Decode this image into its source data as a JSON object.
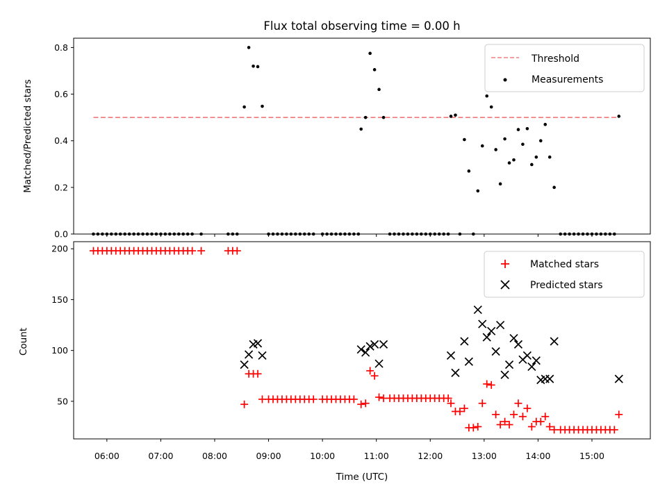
{
  "chart_data": [
    {
      "type": "scatter",
      "title": "Flux total observing time = 0.00 h",
      "xlabel": "",
      "ylabel": "Matched/Predicted stars",
      "xlim": [
        "05:23",
        "16:05"
      ],
      "ylim": [
        0,
        0.84
      ],
      "yticks": [
        "0.0",
        "0.2",
        "0.4",
        "0.6",
        "0.8"
      ],
      "legend_position": "top-right",
      "threshold": {
        "name": "Threshold",
        "value": 0.5,
        "x_range": [
          "05:45",
          "15:30"
        ],
        "color": "#f08080"
      },
      "series": [
        {
          "name": "Measurements",
          "color": "#000000",
          "points": [
            [
              "05:45",
              0
            ],
            [
              "05:50",
              0
            ],
            [
              "05:55",
              0
            ],
            [
              "06:00",
              0
            ],
            [
              "06:05",
              0
            ],
            [
              "06:10",
              0
            ],
            [
              "06:15",
              0
            ],
            [
              "06:20",
              0
            ],
            [
              "06:25",
              0
            ],
            [
              "06:30",
              0
            ],
            [
              "06:35",
              0
            ],
            [
              "06:40",
              0
            ],
            [
              "06:45",
              0
            ],
            [
              "06:50",
              0
            ],
            [
              "06:55",
              0
            ],
            [
              "07:00",
              0
            ],
            [
              "07:05",
              0
            ],
            [
              "07:10",
              0
            ],
            [
              "07:15",
              0
            ],
            [
              "07:20",
              0
            ],
            [
              "07:25",
              0
            ],
            [
              "07:30",
              0
            ],
            [
              "07:35",
              0
            ],
            [
              "07:45",
              0
            ],
            [
              "08:15",
              0
            ],
            [
              "08:20",
              0
            ],
            [
              "08:25",
              0
            ],
            [
              "08:33",
              0.545
            ],
            [
              "08:38",
              0.8
            ],
            [
              "08:43",
              0.72
            ],
            [
              "08:48",
              0.718
            ],
            [
              "08:53",
              0.548
            ],
            [
              "09:00",
              0
            ],
            [
              "09:05",
              0
            ],
            [
              "09:10",
              0
            ],
            [
              "09:15",
              0
            ],
            [
              "09:20",
              0
            ],
            [
              "09:25",
              0
            ],
            [
              "09:30",
              0
            ],
            [
              "09:35",
              0
            ],
            [
              "09:40",
              0
            ],
            [
              "09:45",
              0
            ],
            [
              "09:50",
              0
            ],
            [
              "10:00",
              0
            ],
            [
              "10:05",
              0
            ],
            [
              "10:10",
              0
            ],
            [
              "10:15",
              0
            ],
            [
              "10:20",
              0
            ],
            [
              "10:25",
              0
            ],
            [
              "10:30",
              0
            ],
            [
              "10:35",
              0
            ],
            [
              "10:40",
              0
            ],
            [
              "10:43",
              0.45
            ],
            [
              "10:48",
              0.5
            ],
            [
              "10:53",
              0.775
            ],
            [
              "10:58",
              0.705
            ],
            [
              "11:03",
              0.62
            ],
            [
              "11:08",
              0.5
            ],
            [
              "11:15",
              0
            ],
            [
              "11:20",
              0
            ],
            [
              "11:25",
              0
            ],
            [
              "11:30",
              0
            ],
            [
              "11:35",
              0
            ],
            [
              "11:40",
              0
            ],
            [
              "11:45",
              0
            ],
            [
              "11:50",
              0
            ],
            [
              "11:55",
              0
            ],
            [
              "12:00",
              0
            ],
            [
              "12:05",
              0
            ],
            [
              "12:10",
              0
            ],
            [
              "12:15",
              0
            ],
            [
              "12:20",
              0
            ],
            [
              "12:23",
              0.505
            ],
            [
              "12:28",
              0.51
            ],
            [
              "12:33",
              0
            ],
            [
              "12:38",
              0.405
            ],
            [
              "12:43",
              0.27
            ],
            [
              "12:48",
              0
            ],
            [
              "12:53",
              0.185
            ],
            [
              "12:58",
              0.378
            ],
            [
              "13:03",
              0.592
            ],
            [
              "13:08",
              0.545
            ],
            [
              "13:13",
              0.362
            ],
            [
              "13:18",
              0.215
            ],
            [
              "13:23",
              0.408
            ],
            [
              "13:28",
              0.305
            ],
            [
              "13:33",
              0.318
            ],
            [
              "13:38",
              0.448
            ],
            [
              "13:43",
              0.385
            ],
            [
              "13:48",
              0.452
            ],
            [
              "13:53",
              0.298
            ],
            [
              "13:58",
              0.33
            ],
            [
              "14:03",
              0.4
            ],
            [
              "14:08",
              0.47
            ],
            [
              "14:13",
              0.33
            ],
            [
              "14:18",
              0.2
            ],
            [
              "14:25",
              0
            ],
            [
              "14:30",
              0
            ],
            [
              "14:35",
              0
            ],
            [
              "14:40",
              0
            ],
            [
              "14:45",
              0
            ],
            [
              "14:50",
              0
            ],
            [
              "14:55",
              0
            ],
            [
              "15:00",
              0
            ],
            [
              "15:05",
              0
            ],
            [
              "15:10",
              0
            ],
            [
              "15:15",
              0
            ],
            [
              "15:20",
              0
            ],
            [
              "15:25",
              0
            ],
            [
              "15:30",
              0.505
            ]
          ]
        }
      ]
    },
    {
      "type": "scatter",
      "title": "",
      "xlabel": "Time (UTC)",
      "ylabel": "Count",
      "xlim": [
        "05:23",
        "16:05"
      ],
      "ylim": [
        13,
        207
      ],
      "yticks": [
        "50",
        "100",
        "150",
        "200"
      ],
      "xticks": [
        "06:00",
        "07:00",
        "08:00",
        "09:00",
        "10:00",
        "11:00",
        "12:00",
        "13:00",
        "14:00",
        "15:00"
      ],
      "legend_position": "top-right",
      "series": [
        {
          "name": "Matched stars",
          "color": "#ff0000",
          "marker": "plus",
          "points": [
            [
              "05:45",
              198
            ],
            [
              "05:50",
              198
            ],
            [
              "05:55",
              198
            ],
            [
              "06:00",
              198
            ],
            [
              "06:05",
              198
            ],
            [
              "06:10",
              198
            ],
            [
              "06:15",
              198
            ],
            [
              "06:20",
              198
            ],
            [
              "06:25",
              198
            ],
            [
              "06:30",
              198
            ],
            [
              "06:35",
              198
            ],
            [
              "06:40",
              198
            ],
            [
              "06:45",
              198
            ],
            [
              "06:50",
              198
            ],
            [
              "06:55",
              198
            ],
            [
              "07:00",
              198
            ],
            [
              "07:05",
              198
            ],
            [
              "07:10",
              198
            ],
            [
              "07:15",
              198
            ],
            [
              "07:20",
              198
            ],
            [
              "07:25",
              198
            ],
            [
              "07:30",
              198
            ],
            [
              "07:35",
              198
            ],
            [
              "07:45",
              198
            ],
            [
              "08:15",
              198
            ],
            [
              "08:20",
              198
            ],
            [
              "08:25",
              198
            ],
            [
              "08:33",
              47
            ],
            [
              "08:38",
              77
            ],
            [
              "08:43",
              77
            ],
            [
              "08:48",
              77
            ],
            [
              "08:53",
              52
            ],
            [
              "09:00",
              52
            ],
            [
              "09:05",
              52
            ],
            [
              "09:10",
              52
            ],
            [
              "09:15",
              52
            ],
            [
              "09:20",
              52
            ],
            [
              "09:25",
              52
            ],
            [
              "09:30",
              52
            ],
            [
              "09:35",
              52
            ],
            [
              "09:40",
              52
            ],
            [
              "09:45",
              52
            ],
            [
              "09:50",
              52
            ],
            [
              "10:00",
              52
            ],
            [
              "10:05",
              52
            ],
            [
              "10:10",
              52
            ],
            [
              "10:15",
              52
            ],
            [
              "10:20",
              52
            ],
            [
              "10:25",
              52
            ],
            [
              "10:30",
              52
            ],
            [
              "10:35",
              52
            ],
            [
              "10:43",
              47
            ],
            [
              "10:48",
              48
            ],
            [
              "10:53",
              80
            ],
            [
              "10:58",
              75
            ],
            [
              "11:03",
              54
            ],
            [
              "11:08",
              53
            ],
            [
              "11:15",
              53
            ],
            [
              "11:20",
              53
            ],
            [
              "11:25",
              53
            ],
            [
              "11:30",
              53
            ],
            [
              "11:35",
              53
            ],
            [
              "11:40",
              53
            ],
            [
              "11:45",
              53
            ],
            [
              "11:50",
              53
            ],
            [
              "11:55",
              53
            ],
            [
              "12:00",
              53
            ],
            [
              "12:05",
              53
            ],
            [
              "12:10",
              53
            ],
            [
              "12:15",
              53
            ],
            [
              "12:20",
              53
            ],
            [
              "12:23",
              48
            ],
            [
              "12:28",
              40
            ],
            [
              "12:33",
              40
            ],
            [
              "12:38",
              43
            ],
            [
              "12:43",
              24
            ],
            [
              "12:48",
              24
            ],
            [
              "12:53",
              25
            ],
            [
              "12:58",
              48
            ],
            [
              "13:03",
              67
            ],
            [
              "13:08",
              66
            ],
            [
              "13:13",
              37
            ],
            [
              "13:18",
              27
            ],
            [
              "13:23",
              30
            ],
            [
              "13:28",
              27
            ],
            [
              "13:33",
              37
            ],
            [
              "13:38",
              48
            ],
            [
              "13:43",
              35
            ],
            [
              "13:48",
              43
            ],
            [
              "13:53",
              25
            ],
            [
              "13:58",
              30
            ],
            [
              "14:03",
              30
            ],
            [
              "14:08",
              35
            ],
            [
              "14:13",
              25
            ],
            [
              "14:18",
              22
            ],
            [
              "14:25",
              22
            ],
            [
              "14:30",
              22
            ],
            [
              "14:35",
              22
            ],
            [
              "14:40",
              22
            ],
            [
              "14:45",
              22
            ],
            [
              "14:50",
              22
            ],
            [
              "14:55",
              22
            ],
            [
              "15:00",
              22
            ],
            [
              "15:05",
              22
            ],
            [
              "15:10",
              22
            ],
            [
              "15:15",
              22
            ],
            [
              "15:20",
              22
            ],
            [
              "15:25",
              22
            ],
            [
              "15:30",
              37
            ]
          ]
        },
        {
          "name": "Predicted stars",
          "color": "#000000",
          "marker": "x",
          "points": [
            [
              "08:33",
              86
            ],
            [
              "08:38",
              96
            ],
            [
              "08:43",
              106
            ],
            [
              "08:48",
              107
            ],
            [
              "08:53",
              95
            ],
            [
              "10:43",
              101
            ],
            [
              "10:48",
              98
            ],
            [
              "10:53",
              104
            ],
            [
              "10:58",
              106
            ],
            [
              "11:03",
              87
            ],
            [
              "11:08",
              106
            ],
            [
              "12:23",
              95
            ],
            [
              "12:28",
              78
            ],
            [
              "12:38",
              109
            ],
            [
              "12:43",
              89
            ],
            [
              "12:53",
              140
            ],
            [
              "12:58",
              126
            ],
            [
              "13:03",
              113
            ],
            [
              "13:08",
              119
            ],
            [
              "13:13",
              99
            ],
            [
              "13:18",
              125
            ],
            [
              "13:23",
              76
            ],
            [
              "13:28",
              86
            ],
            [
              "13:33",
              112
            ],
            [
              "13:38",
              106
            ],
            [
              "13:43",
              91
            ],
            [
              "13:48",
              95
            ],
            [
              "13:53",
              84
            ],
            [
              "13:58",
              90
            ],
            [
              "14:03",
              71
            ],
            [
              "14:08",
              72
            ],
            [
              "14:13",
              72
            ],
            [
              "14:18",
              109
            ],
            [
              "15:30",
              72
            ]
          ]
        }
      ]
    }
  ]
}
